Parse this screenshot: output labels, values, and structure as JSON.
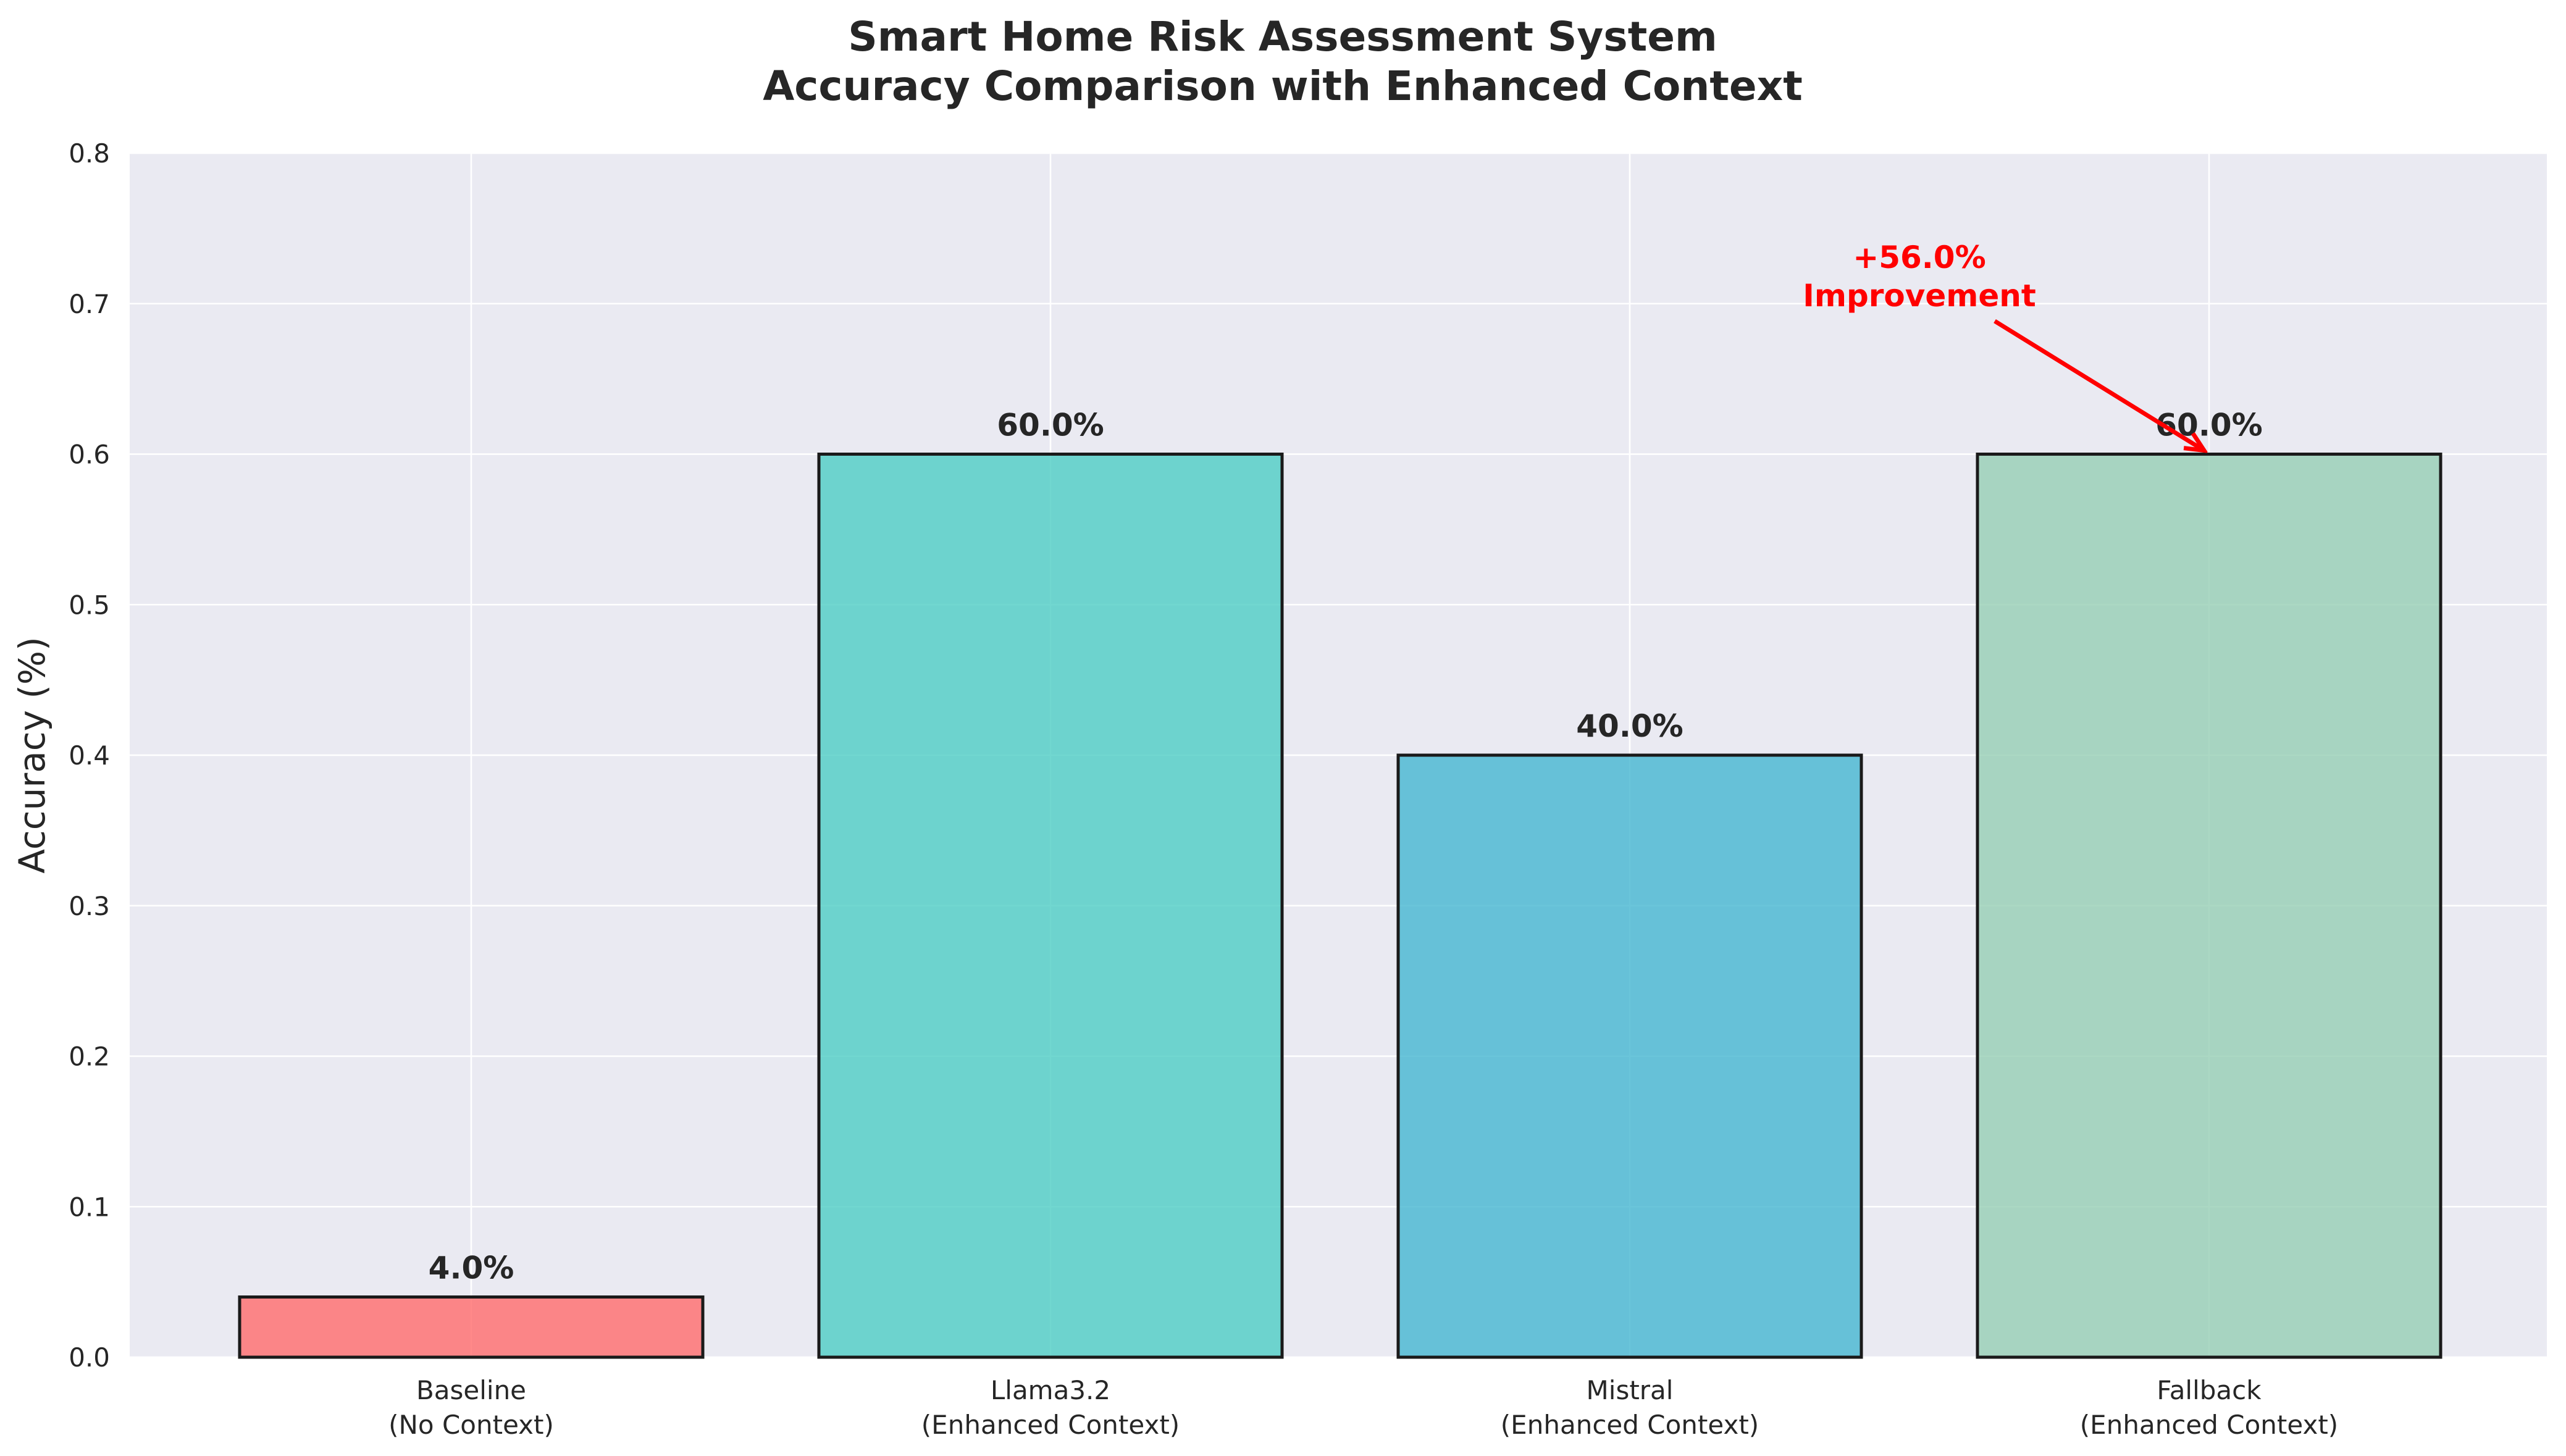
{
  "chart_data": {
    "type": "bar",
    "title_lines": [
      "Smart Home Risk Assessment System",
      "Accuracy Comparison with Enhanced Context"
    ],
    "xlabel": "",
    "ylabel": "Accuracy (%)",
    "categories": [
      [
        "Baseline",
        "(No Context)"
      ],
      [
        "Llama3.2",
        "(Enhanced Context)"
      ],
      [
        "Mistral",
        "(Enhanced Context)"
      ],
      [
        "Fallback",
        "(Enhanced Context)"
      ]
    ],
    "values": [
      0.04,
      0.6,
      0.4,
      0.6
    ],
    "value_labels": [
      "4.0%",
      "60.0%",
      "40.0%",
      "60.0%"
    ],
    "colors": [
      "#FF6B6B",
      "#4ECDC4",
      "#45B7D1",
      "#96CEB4"
    ],
    "ylim": [
      0,
      0.8
    ],
    "yticks": [
      "0.0",
      "0.1",
      "0.2",
      "0.3",
      "0.4",
      "0.5",
      "0.6",
      "0.7",
      "0.8"
    ],
    "grid": true,
    "annotation": {
      "lines": [
        "+56.0%",
        "Improvement"
      ],
      "target_index": 3,
      "text_value": 0.7,
      "color": "#FF0000"
    }
  }
}
